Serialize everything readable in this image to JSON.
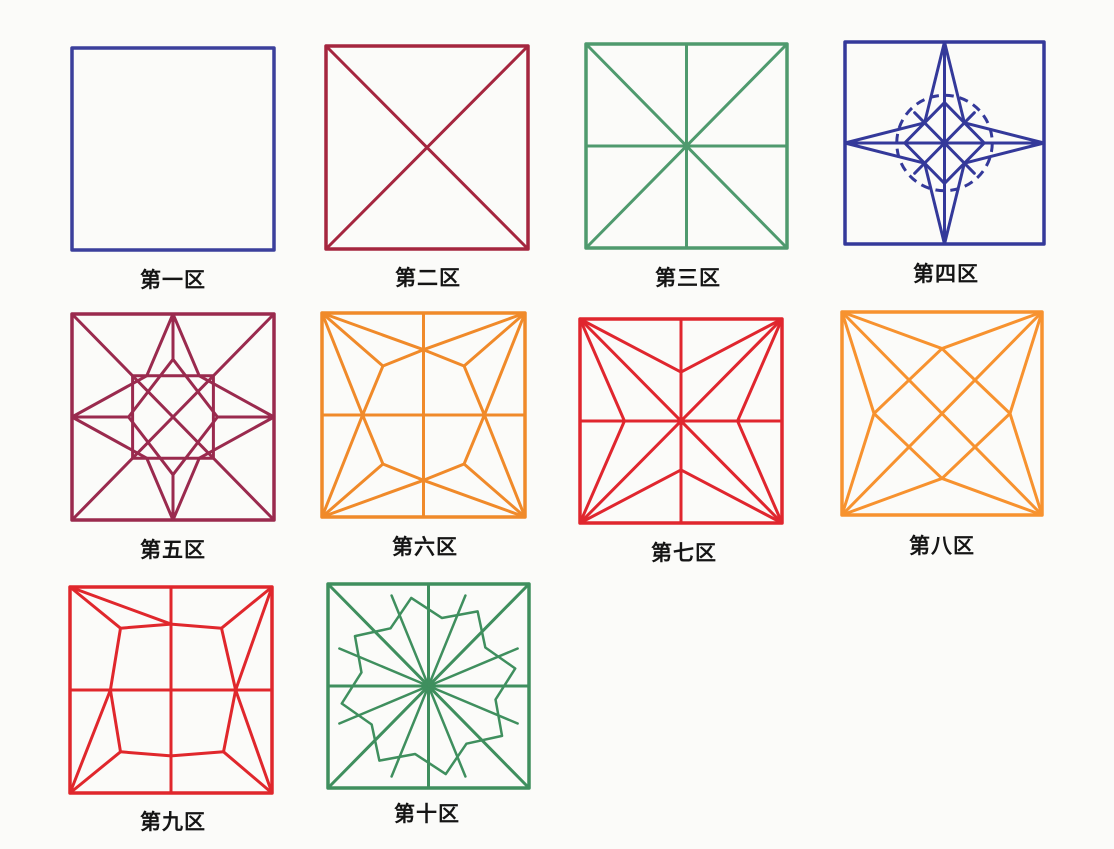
{
  "panels": [
    {
      "id": "p1",
      "label": "第一区",
      "color": "#3b3f9c",
      "pattern": "frame"
    },
    {
      "id": "p2",
      "label": "第二区",
      "color": "#a5263f",
      "pattern": "diagonals"
    },
    {
      "id": "p3",
      "label": "第三区",
      "color": "#4f9a6e",
      "pattern": "rice-grid"
    },
    {
      "id": "p4",
      "label": "第四区",
      "color": "#34399a",
      "pattern": "four-point-star-with-dashed-circle"
    },
    {
      "id": "p5",
      "label": "第五区",
      "color": "#9a2a4e",
      "pattern": "eight-point-star-octagon"
    },
    {
      "id": "p6",
      "label": "第六区",
      "color": "#f08a2a",
      "pattern": "radiating-octagon"
    },
    {
      "id": "p7",
      "label": "第七区",
      "color": "#e0262e",
      "pattern": "pinwheel-star"
    },
    {
      "id": "p8",
      "label": "第八区",
      "color": "#f7922f",
      "pattern": "inner-diamond-star"
    },
    {
      "id": "p9",
      "label": "第九区",
      "color": "#e0272c",
      "pattern": "corner-rays-octagon"
    },
    {
      "id": "p10",
      "label": "第十区",
      "color": "#3f8f5e",
      "pattern": "radial-star-burst"
    }
  ]
}
